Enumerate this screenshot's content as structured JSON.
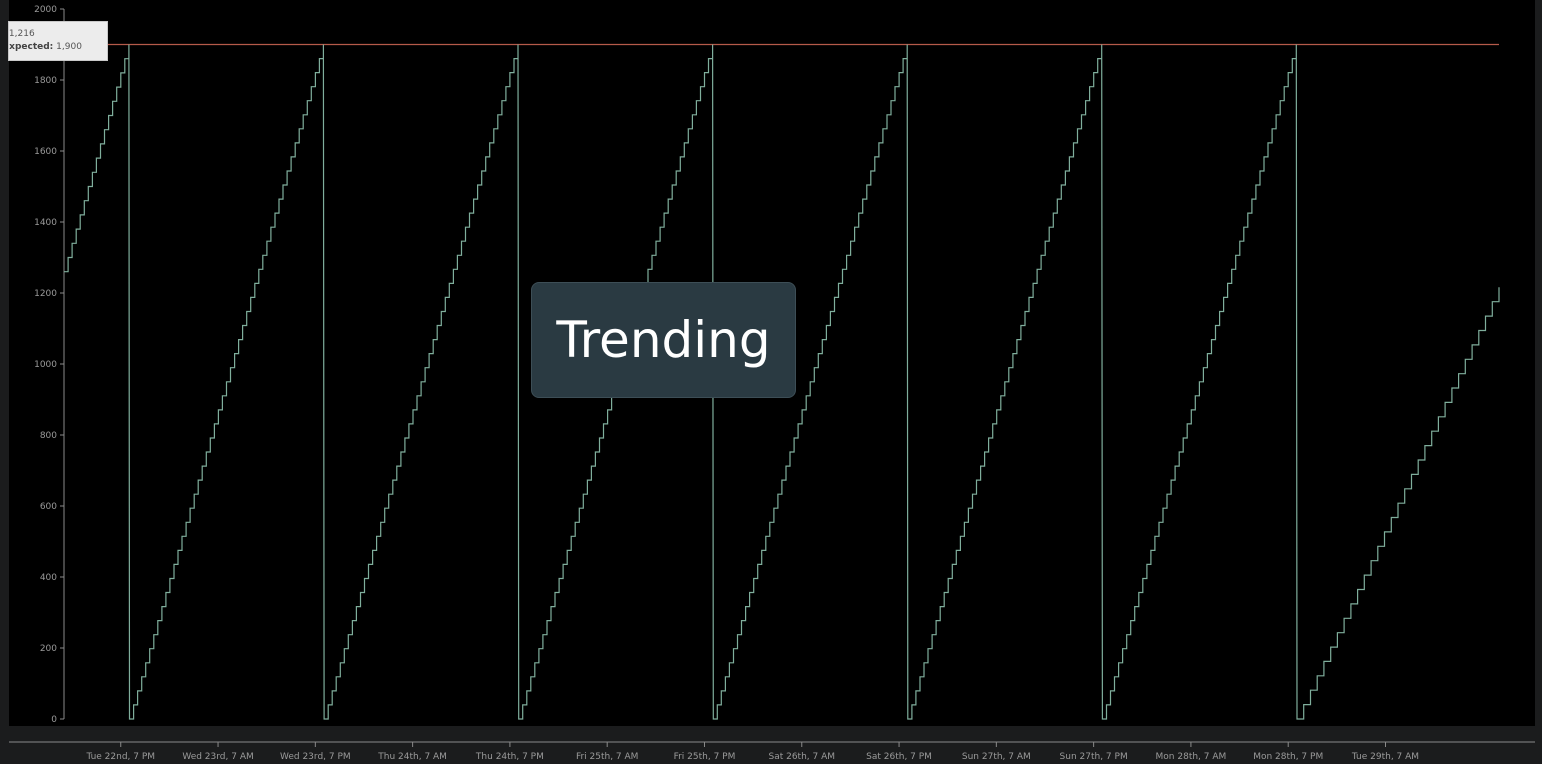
{
  "tooltip": {
    "value_label": ":",
    "value": "1,216",
    "expected_label": "Expected:",
    "expected": "1,900"
  },
  "badge": {
    "label": "Trending"
  },
  "colors": {
    "background": "#000000",
    "frame": "#1b1c1d",
    "series": "#7fae9c",
    "threshold": "#b55a4a",
    "axis": "#8a8a8a",
    "tick_text": "#9a9a9a"
  },
  "chart_data": {
    "type": "line",
    "title": "",
    "xlabel": "",
    "ylabel": "",
    "ylim": [
      0,
      2000
    ],
    "yticks": [
      0,
      200,
      400,
      600,
      800,
      1000,
      1200,
      1400,
      1600,
      1800,
      2000
    ],
    "xticks": [
      {
        "t": "2019-10-22T19:00",
        "label": "Tue 22nd, 7 PM"
      },
      {
        "t": "2019-10-23T07:00",
        "label": "Wed 23rd, 7 AM"
      },
      {
        "t": "2019-10-23T19:00",
        "label": "Wed 23rd, 7 PM"
      },
      {
        "t": "2019-10-24T07:00",
        "label": "Thu 24th, 7 AM"
      },
      {
        "t": "2019-10-24T19:00",
        "label": "Thu 24th, 7 PM"
      },
      {
        "t": "2019-10-25T07:00",
        "label": "Fri 25th, 7 AM"
      },
      {
        "t": "2019-10-25T19:00",
        "label": "Fri 25th, 7 PM"
      },
      {
        "t": "2019-10-26T07:00",
        "label": "Sat 26th, 7 AM"
      },
      {
        "t": "2019-10-26T19:00",
        "label": "Sat 26th, 7 PM"
      },
      {
        "t": "2019-10-27T07:00",
        "label": "Sun 27th, 7 AM"
      },
      {
        "t": "2019-10-27T19:00",
        "label": "Sun 27th, 7 PM"
      },
      {
        "t": "2019-10-28T07:00",
        "label": "Mon 28th, 7 AM"
      },
      {
        "t": "2019-10-28T19:00",
        "label": "Mon 28th, 7 PM"
      },
      {
        "t": "2019-10-29T07:00",
        "label": "Tue 29th, 7 AM"
      }
    ],
    "x_range": [
      "2019-10-22T12:00",
      "2019-10-29T21:00"
    ],
    "threshold": {
      "name": "Expected",
      "value": 1900
    },
    "series": [
      {
        "name": "",
        "points": [
          [
            "2019-10-22T12:00",
            1260
          ],
          [
            "2019-10-22T20:00",
            1900
          ],
          [
            "2019-10-22T20:05",
            0
          ],
          [
            "2019-10-23T20:00",
            1900
          ],
          [
            "2019-10-23T20:05",
            0
          ],
          [
            "2019-10-24T20:00",
            1900
          ],
          [
            "2019-10-24T20:05",
            0
          ],
          [
            "2019-10-25T20:00",
            1900
          ],
          [
            "2019-10-25T20:05",
            0
          ],
          [
            "2019-10-26T20:00",
            1900
          ],
          [
            "2019-10-26T20:05",
            0
          ],
          [
            "2019-10-27T20:00",
            1900
          ],
          [
            "2019-10-27T20:05",
            0
          ],
          [
            "2019-10-28T20:00",
            1900
          ],
          [
            "2019-10-28T20:05",
            0
          ],
          [
            "2019-10-29T21:00",
            1216
          ]
        ]
      }
    ],
    "grid": false,
    "legend": "none"
  }
}
